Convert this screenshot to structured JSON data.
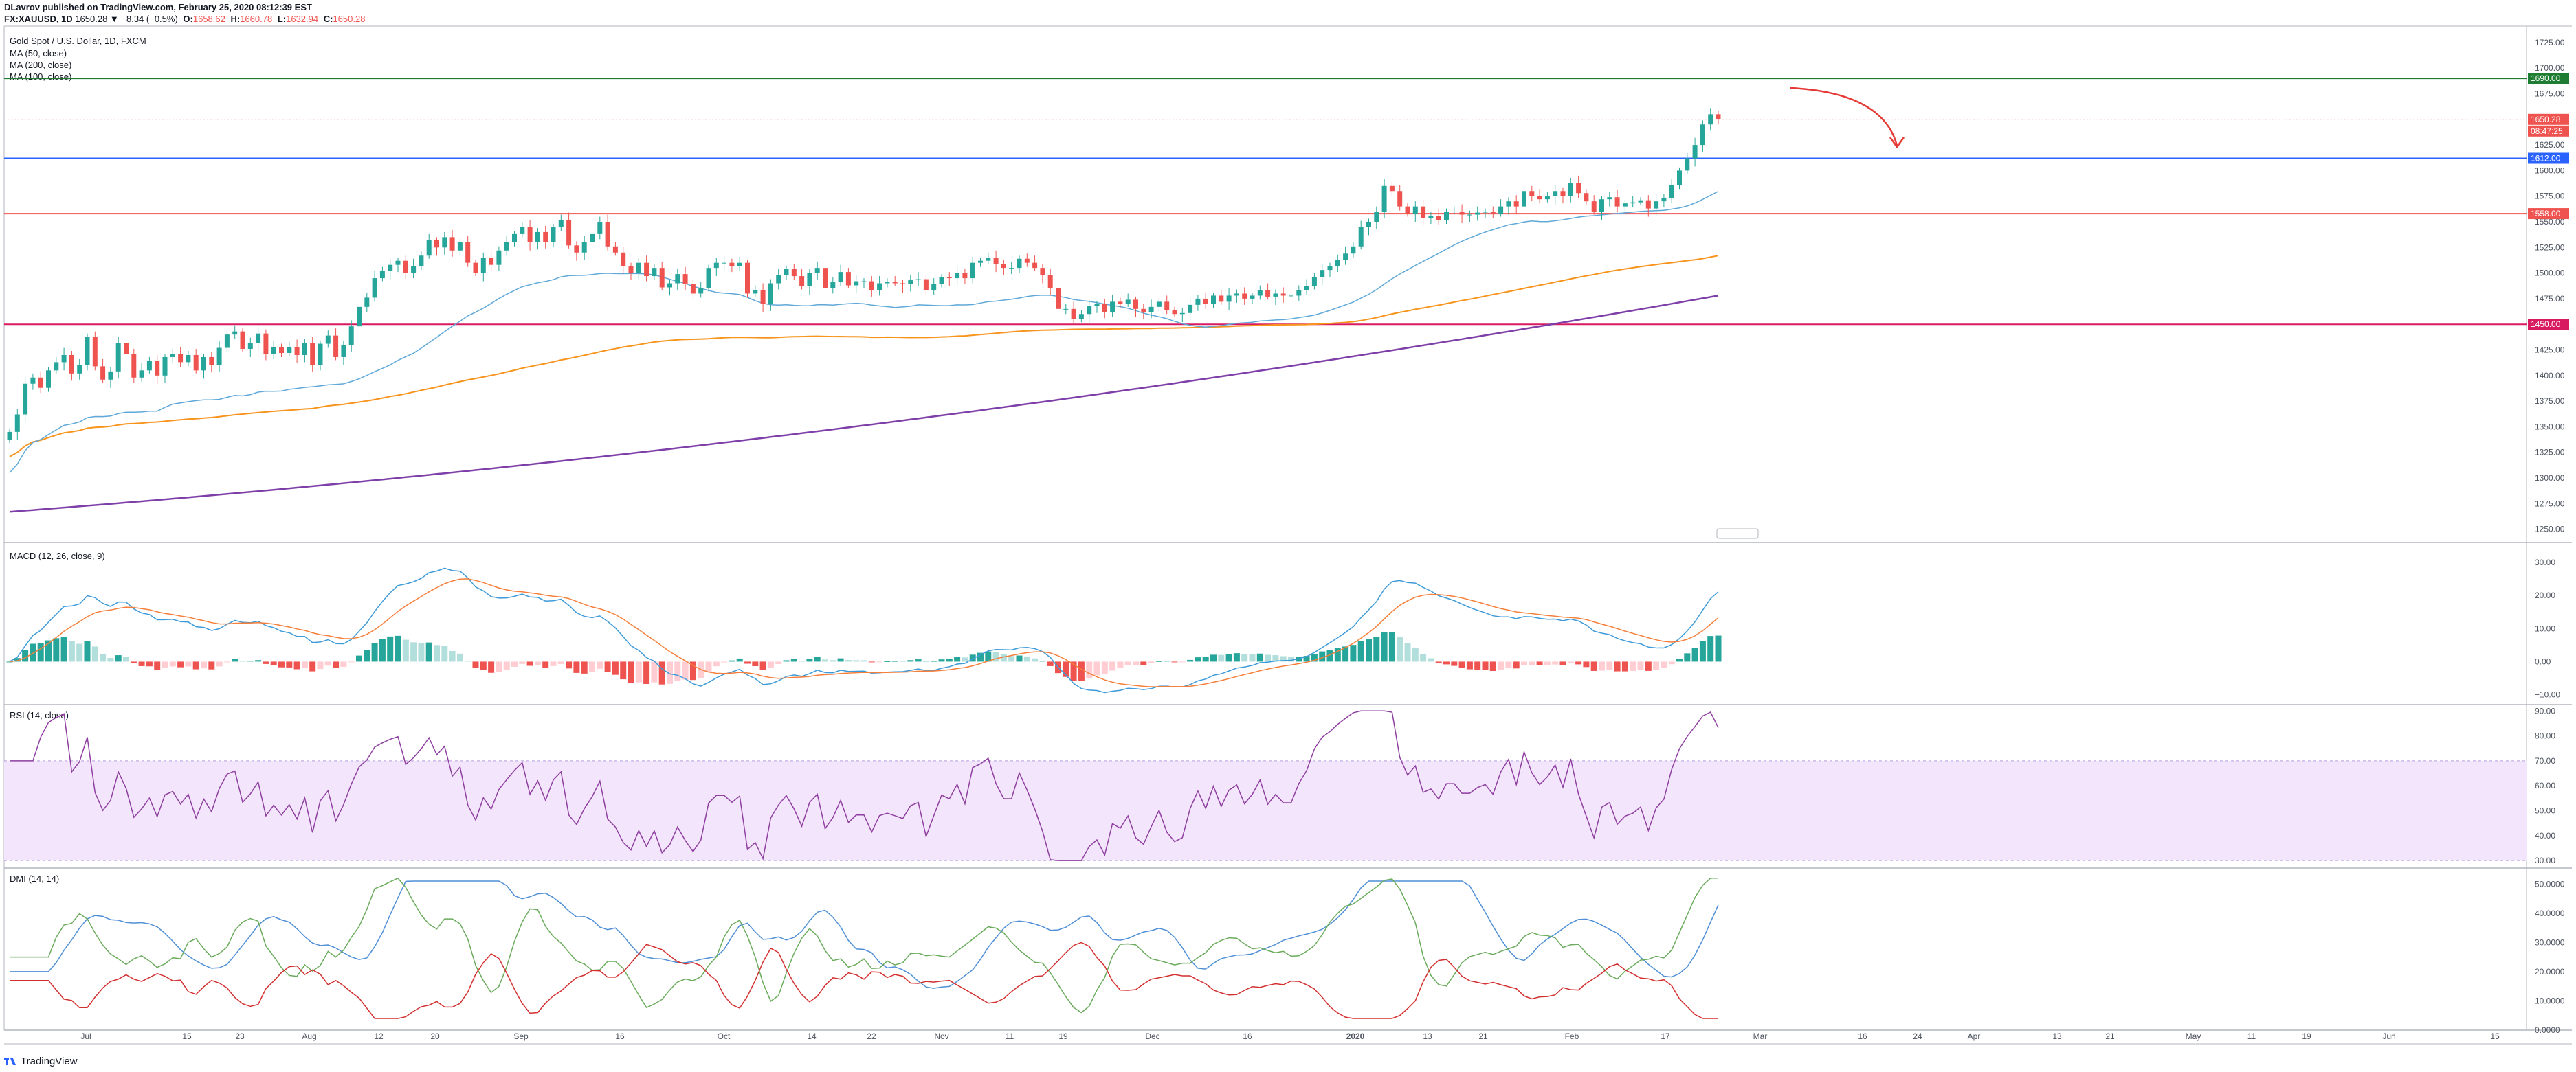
{
  "header": {
    "line1": "DLavrov published on TradingView.com, February 25, 2020 08:12:39 EST",
    "symbol": "FX:XAUUSD, 1D",
    "change": "1650.28 ▼ −8.34 (−0.5%)",
    "o_label": "O:",
    "o_value": "1658.62",
    "h_label": "H:",
    "h_value": "1660.78",
    "l_label": "L:",
    "l_value": "1632.94",
    "c_label": "C:",
    "c_value": "1650.28"
  },
  "legend": {
    "title": "Gold Spot / U.S. Dollar, 1D, FXCM",
    "ma50": "MA (50, close)",
    "ma200": "MA (200, close)",
    "ma100": "MA (100, close)"
  },
  "pane_labels": {
    "macd": "MACD (12, 26, close, 9)",
    "rsi": "RSI (14, close)",
    "dmi": "DMI (14, 14)"
  },
  "footer": {
    "brand": "TradingView"
  },
  "colors": {
    "up": "#26a69a",
    "down": "#ef5350",
    "ma50": "#5fa8d8",
    "ma100": "#f7941d",
    "ma200": "#7e3fa8",
    "macd": "#3d9ad8",
    "signal": "#f57f3a",
    "rsi": "#8e3fa0",
    "dmi_plus": "#6aab5c",
    "dmi_minus": "#d32f2f",
    "adx": "#4f8fd6"
  },
  "chart_data": [
    {
      "type": "candlestick",
      "title": "Gold Spot / U.S. Dollar, 1D, FXCM",
      "ylim": [
        1237,
        1737
      ],
      "x_ticks": [
        "Jul",
        "15",
        "23",
        "Aug",
        "12",
        "20",
        "Sep",
        "16",
        "Oct",
        "14",
        "22",
        "Nov",
        "11",
        "19",
        "Dec",
        "16",
        "2020",
        "13",
        "21",
        "Feb",
        "17",
        "Mar",
        "16",
        "24",
        "Apr",
        "13",
        "21",
        "May",
        "11",
        "19",
        "Jun",
        "15"
      ],
      "y_ticks": [
        "1725.00",
        "1700.00",
        "1675.00",
        "1650.00",
        "1625.00",
        "1600.00",
        "1575.00",
        "1550.00",
        "1525.00",
        "1500.00",
        "1475.00",
        "1450.00",
        "1425.00",
        "1400.00",
        "1375.00",
        "1350.00",
        "1325.00",
        "1300.00",
        "1275.00",
        "1250.00"
      ],
      "horizontal_levels": [
        {
          "value": 1690.0,
          "label": "1690.00",
          "color": "#1e7d32"
        },
        {
          "value": 1612.0,
          "label": "1612.00",
          "color": "#2962ff"
        },
        {
          "value": 1558.0,
          "label": "1558.00",
          "color": "#ef5350"
        },
        {
          "value": 1450.0,
          "label": "1450.00",
          "color": "#d81b60"
        }
      ],
      "last_price": {
        "label": "1650.28",
        "countdown": "08:47:25"
      },
      "close_series": [
        1345,
        1362,
        1392,
        1398,
        1388,
        1405,
        1413,
        1420,
        1402,
        1410,
        1438,
        1409,
        1396,
        1404,
        1432,
        1421,
        1398,
        1405,
        1414,
        1400,
        1418,
        1421,
        1413,
        1420,
        1405,
        1418,
        1410,
        1427,
        1440,
        1443,
        1426,
        1432,
        1441,
        1421,
        1428,
        1422,
        1428,
        1420,
        1432,
        1410,
        1431,
        1439,
        1418,
        1430,
        1448,
        1467,
        1476,
        1495,
        1502,
        1508,
        1512,
        1500,
        1507,
        1517,
        1532,
        1525,
        1535,
        1522,
        1530,
        1510,
        1500,
        1515,
        1508,
        1522,
        1530,
        1538,
        1545,
        1530,
        1540,
        1530,
        1545,
        1552,
        1527,
        1520,
        1530,
        1538,
        1550,
        1526,
        1520,
        1507,
        1500,
        1510,
        1497,
        1505,
        1486,
        1490,
        1499,
        1489,
        1480,
        1485,
        1505,
        1510,
        1510,
        1507,
        1510,
        1480,
        1483,
        1470,
        1490,
        1498,
        1504,
        1497,
        1487,
        1500,
        1505,
        1485,
        1491,
        1501,
        1488,
        1492,
        1492,
        1483,
        1490,
        1491,
        1490,
        1489,
        1493,
        1494,
        1483,
        1489,
        1496,
        1495,
        1500,
        1495,
        1510,
        1512,
        1515,
        1509,
        1505,
        1505,
        1514,
        1510,
        1505,
        1498,
        1485,
        1465,
        1465,
        1455,
        1460,
        1468,
        1470,
        1462,
        1472,
        1470,
        1474,
        1465,
        1462,
        1467,
        1472,
        1464,
        1460,
        1461,
        1469,
        1475,
        1470,
        1478,
        1472,
        1478,
        1480,
        1475,
        1478,
        1483,
        1477,
        1480,
        1478,
        1478,
        1483,
        1487,
        1496,
        1503,
        1507,
        1513,
        1519,
        1526,
        1545,
        1550,
        1560,
        1585,
        1580,
        1565,
        1558,
        1565,
        1554,
        1556,
        1552,
        1560,
        1560,
        1557,
        1557,
        1559,
        1560,
        1558,
        1565,
        1570,
        1565,
        1580,
        1575,
        1572,
        1575,
        1580,
        1575,
        1588,
        1578,
        1570,
        1560,
        1572,
        1574,
        1565,
        1568,
        1569,
        1571,
        1563,
        1570,
        1573,
        1586,
        1600,
        1612,
        1625,
        1645,
        1655,
        1650
      ],
      "ma50_end": 1552,
      "ma100_end": 1517,
      "ma200_end": 1477
    },
    {
      "type": "bar+line",
      "title": "MACD (12, 26, close, 9)",
      "ylim": [
        -13,
        35
      ],
      "y_ticks": [
        "30.00",
        "20.00",
        "10.00",
        "0.00",
        "−10.00"
      ],
      "last_values": {
        "macd": 25,
        "signal": 17,
        "histogram": 7
      }
    },
    {
      "type": "line",
      "title": "RSI (14, close)",
      "ylim": [
        27,
        92
      ],
      "y_ticks": [
        "90.00",
        "80.00",
        "70.00",
        "60.00",
        "50.00",
        "40.00",
        "30.00"
      ],
      "band": [
        30,
        70
      ],
      "last_value": 76
    },
    {
      "type": "line",
      "title": "DMI (14, 14)",
      "ylim": [
        0,
        55
      ],
      "y_ticks": [
        "50.0000",
        "40.0000",
        "30.0000",
        "20.0000",
        "10.0000",
        "0.0000"
      ],
      "last_values": {
        "plus_di": 48,
        "minus_di": 10,
        "adx": 48
      }
    }
  ]
}
